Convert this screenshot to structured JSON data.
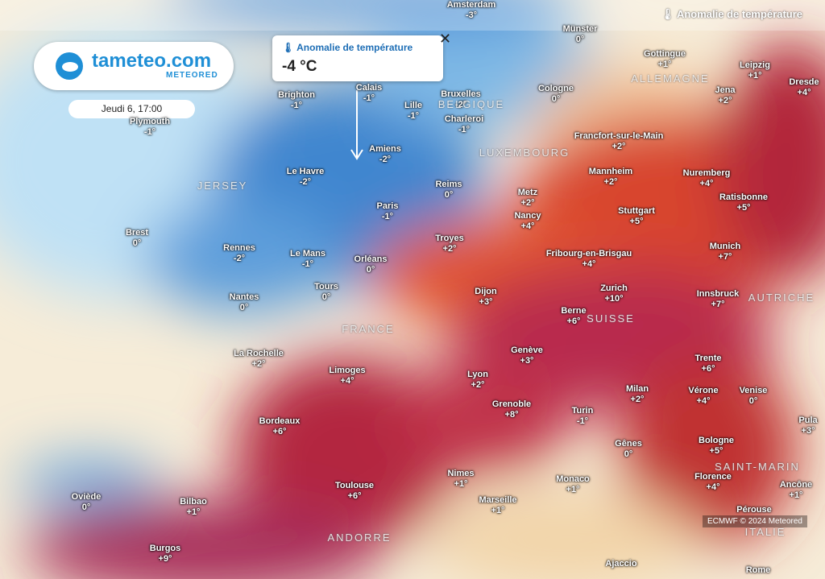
{
  "header": {
    "layer_title": "Anomalie de température"
  },
  "logo": {
    "name": "tameteo.com",
    "brand": "METEORED"
  },
  "date": "Jeudi 6, 17:00",
  "popup": {
    "title": "Anomalie de température",
    "value": "-4 °C"
  },
  "credit": "ECMWF © 2024 Meteored",
  "countries": [
    "ALLEMAGNE",
    "BELGIQUE",
    "LUXEMBOURG",
    "FRANCE",
    "SUISSE",
    "AUTRICHE",
    "ITALIE",
    "SAINT-MARIN",
    "ANDORRE",
    "JERSEY"
  ],
  "cities": [
    {
      "name": "Amsterdam",
      "value": "-3°"
    },
    {
      "name": "Münster",
      "value": "0°"
    },
    {
      "name": "Gottingue",
      "value": "+1°"
    },
    {
      "name": "Leipzig",
      "value": "+1°"
    },
    {
      "name": "Dresde",
      "value": "+4°"
    },
    {
      "name": "Jena",
      "value": "+2°"
    },
    {
      "name": "Brighton",
      "value": "-1°"
    },
    {
      "name": "Calais",
      "value": "-1°"
    },
    {
      "name": "Bruxelles",
      "value": "-2°"
    },
    {
      "name": "Lille",
      "value": "-1°"
    },
    {
      "name": "Cologne",
      "value": "0°"
    },
    {
      "name": "Charleroi",
      "value": "-1°"
    },
    {
      "name": "Plymouth",
      "value": "-1°"
    },
    {
      "name": "Amiens",
      "value": "-2°"
    },
    {
      "name": "Francfort-sur-le-Main",
      "value": "+2°"
    },
    {
      "name": "Le Havre",
      "value": "-2°"
    },
    {
      "name": "Mannheim",
      "value": "+2°"
    },
    {
      "name": "Nuremberg",
      "value": "+4°"
    },
    {
      "name": "Reims",
      "value": "0°"
    },
    {
      "name": "Metz",
      "value": "+2°"
    },
    {
      "name": "Ratisbonne",
      "value": "+5°"
    },
    {
      "name": "Paris",
      "value": "-1°"
    },
    {
      "name": "Stuttgart",
      "value": "+5°"
    },
    {
      "name": "Nancy",
      "value": "+4°"
    },
    {
      "name": "Brest",
      "value": "0°"
    },
    {
      "name": "Troyes",
      "value": "+2°"
    },
    {
      "name": "Rennes",
      "value": "-2°"
    },
    {
      "name": "Munich",
      "value": "+7°"
    },
    {
      "name": "Le Mans",
      "value": "-1°"
    },
    {
      "name": "Fribourg-en-Brisgau",
      "value": "+4°"
    },
    {
      "name": "Orléans",
      "value": "0°"
    },
    {
      "name": "Tours",
      "value": "0°"
    },
    {
      "name": "Zurich",
      "value": "+10°"
    },
    {
      "name": "Dijon",
      "value": "+3°"
    },
    {
      "name": "Innsbruck",
      "value": "+7°"
    },
    {
      "name": "Nantes",
      "value": "0°"
    },
    {
      "name": "Berne",
      "value": "+6°"
    },
    {
      "name": "La Rochelle",
      "value": "+2°"
    },
    {
      "name": "Genève",
      "value": "+3°"
    },
    {
      "name": "Trente",
      "value": "+6°"
    },
    {
      "name": "Limoges",
      "value": "+4°"
    },
    {
      "name": "Lyon",
      "value": "+2°"
    },
    {
      "name": "Milan",
      "value": "+2°"
    },
    {
      "name": "Vérone",
      "value": "+4°"
    },
    {
      "name": "Venise",
      "value": "0°"
    },
    {
      "name": "Grenoble",
      "value": "+8°"
    },
    {
      "name": "Turin",
      "value": "-1°"
    },
    {
      "name": "Bordeaux",
      "value": "+6°"
    },
    {
      "name": "Pula",
      "value": "+3°"
    },
    {
      "name": "Bologne",
      "value": "+5°"
    },
    {
      "name": "Gênes",
      "value": "0°"
    },
    {
      "name": "Nimes",
      "value": "+1°"
    },
    {
      "name": "Monaco",
      "value": "+1°"
    },
    {
      "name": "Florence",
      "value": "+4°"
    },
    {
      "name": "Toulouse",
      "value": "+6°"
    },
    {
      "name": "Ancône",
      "value": "+1°"
    },
    {
      "name": "Oviède",
      "value": "0°"
    },
    {
      "name": "Bilbao",
      "value": "+1°"
    },
    {
      "name": "Marseille",
      "value": "+1°"
    },
    {
      "name": "Burgos",
      "value": "+9°"
    },
    {
      "name": "Pérouse"
    },
    {
      "name": "Ajaccio"
    },
    {
      "name": "Rome"
    }
  ]
}
